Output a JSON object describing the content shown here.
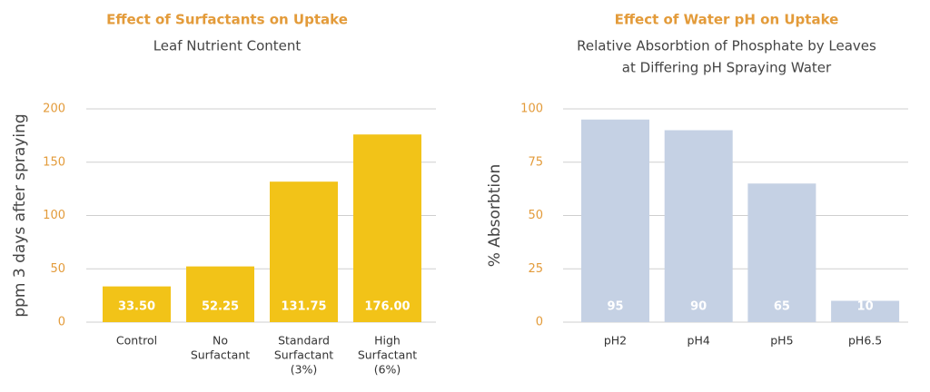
{
  "chart_data": [
    {
      "type": "bar",
      "title": "Effect of Surfactants on Uptake",
      "subtitle": [
        "Leaf Nutrient Content"
      ],
      "ylabel": "ppm 3 days after spraying",
      "categories": [
        [
          "Control"
        ],
        [
          "No",
          "Surfactant"
        ],
        [
          "Standard",
          "Surfactant",
          "(3%)"
        ],
        [
          "High",
          "Surfactant",
          "(6%)"
        ]
      ],
      "values": [
        33.5,
        52.25,
        131.75,
        176
      ],
      "value_labels": [
        "33.50",
        "52.25",
        "131.75",
        "176.00"
      ],
      "color": "#f2c318",
      "ylim": [
        0,
        200
      ],
      "yticks": [
        0,
        50,
        100,
        150,
        200
      ],
      "grid": true
    },
    {
      "type": "bar",
      "title": "Effect of Water pH on Uptake",
      "subtitle": [
        "Relative Absorbtion of Phosphate by Leaves",
        "at Differing pH Spraying Water"
      ],
      "ylabel": "% Absorbtion",
      "categories": [
        [
          "pH2"
        ],
        [
          "pH4"
        ],
        [
          "pH5"
        ],
        [
          "pH6.5"
        ]
      ],
      "values": [
        95,
        90,
        65,
        10
      ],
      "color": "#c5d1e4",
      "ylim": [
        0,
        100
      ],
      "yticks": [
        0,
        25,
        50,
        75,
        100
      ],
      "grid": true
    }
  ]
}
